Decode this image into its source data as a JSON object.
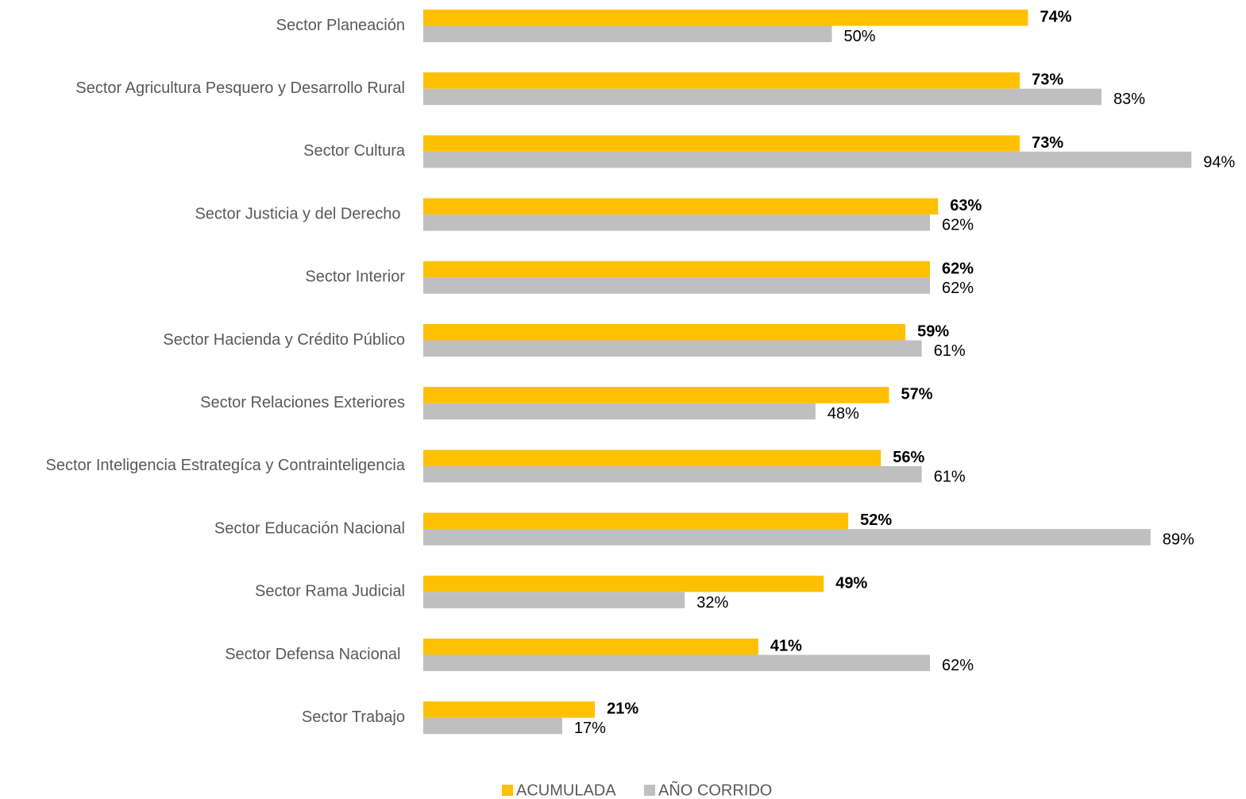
{
  "chart_data": {
    "type": "bar",
    "orientation": "horizontal",
    "categories": [
      "Sector Planeación",
      "Sector Agricultura Pesquero y Desarrollo Rural",
      "Sector Cultura",
      "Sector Justicia y del Derecho ",
      "Sector Interior",
      "Sector Hacienda y Crédito Público",
      "Sector Relaciones Exteriores",
      "Sector Inteligencia Estrategíca y Contrainteligencia",
      "Sector Educación Nacional",
      "Sector Rama Judicial",
      "Sector Defensa Nacional ",
      "Sector Trabajo"
    ],
    "series": [
      {
        "name": "ACUMULADA",
        "color": "#FFC000",
        "values": [
          74,
          73,
          73,
          63,
          62,
          59,
          57,
          56,
          52,
          49,
          41,
          21
        ],
        "value_labels": [
          "74%",
          "73%",
          "73%",
          "63%",
          "62%",
          "59%",
          "57%",
          "56%",
          "52%",
          "49%",
          "41%",
          "21%"
        ]
      },
      {
        "name": "AÑO CORRIDO",
        "color": "#BFBFBF",
        "values": [
          50,
          83,
          94,
          62,
          62,
          61,
          48,
          61,
          89,
          32,
          62,
          17
        ],
        "value_labels": [
          "50%",
          "83%",
          "94%",
          "62%",
          "62%",
          "61%",
          "48%",
          "61%",
          "89%",
          "32%",
          "62%",
          "17%"
        ]
      }
    ],
    "xlim": [
      0,
      100
    ],
    "legend": "bottom"
  }
}
